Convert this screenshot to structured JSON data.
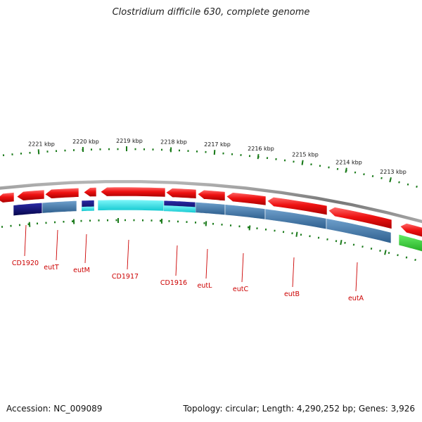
{
  "title": "Clostridium difficile 630, complete genome",
  "footer": {
    "accession": "Accession: NC_009089",
    "info": "Topology: circular; Length: 4,290,252 bp; Genes: 3,926"
  },
  "scale_unit": "kbp",
  "ticks": [
    "2221 kbp",
    "2220 kbp",
    "2219 kbp",
    "2218 kbp",
    "2217 kbp",
    "2216 kbp",
    "2215 kbp",
    "2214 kbp",
    "2213 kbp"
  ],
  "genes": [
    "CD1920",
    "eutT",
    "eutM",
    "CD1917",
    "CD1916",
    "eutL",
    "eutC",
    "eutB",
    "eutA"
  ],
  "colors": {
    "forward_cds": "#ee1111",
    "backbone": "#888888",
    "dark_blue": "#0a0a7a",
    "steel_blue": "#4a7fb0",
    "cyan": "#22e8ee",
    "green": "#33cc33",
    "tick_green": "#1a7a1a",
    "label_red": "#cc0000"
  }
}
